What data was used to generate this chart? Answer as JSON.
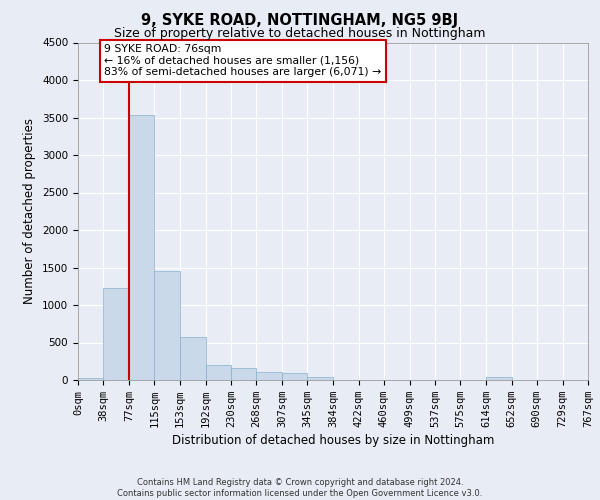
{
  "title": "9, SYKE ROAD, NOTTINGHAM, NG5 9BJ",
  "subtitle": "Size of property relative to detached houses in Nottingham",
  "xlabel": "Distribution of detached houses by size in Nottingham",
  "ylabel": "Number of detached properties",
  "footer_line1": "Contains HM Land Registry data © Crown copyright and database right 2024.",
  "footer_line2": "Contains public sector information licensed under the Open Government Licence v3.0.",
  "annotation_text": "9 SYKE ROAD: 76sqm\n← 16% of detached houses are smaller (1,156)\n83% of semi-detached houses are larger (6,071) →",
  "bin_edges": [
    0,
    38,
    77,
    115,
    153,
    192,
    230,
    268,
    307,
    345,
    384,
    422,
    460,
    499,
    537,
    575,
    614,
    652,
    690,
    729,
    767
  ],
  "bar_heights": [
    25,
    1230,
    3530,
    1460,
    570,
    200,
    165,
    110,
    95,
    45,
    5,
    0,
    0,
    0,
    0,
    0,
    45,
    0,
    0,
    0
  ],
  "bar_color": "#c9d9ea",
  "bar_edge_color": "#8ab0cc",
  "vline_color": "#cc0000",
  "vline_x": 77,
  "annotation_box_color": "#ffffff",
  "annotation_box_edge_color": "#cc0000",
  "ylim": [
    0,
    4500
  ],
  "yticks": [
    0,
    500,
    1000,
    1500,
    2000,
    2500,
    3000,
    3500,
    4000,
    4500
  ],
  "background_color": "#e8edf5",
  "plot_background_color": "#e8edf5",
  "grid_color": "#ffffff",
  "tick_label_fontsize": 7.5,
  "title_fontsize": 10.5,
  "subtitle_fontsize": 9
}
